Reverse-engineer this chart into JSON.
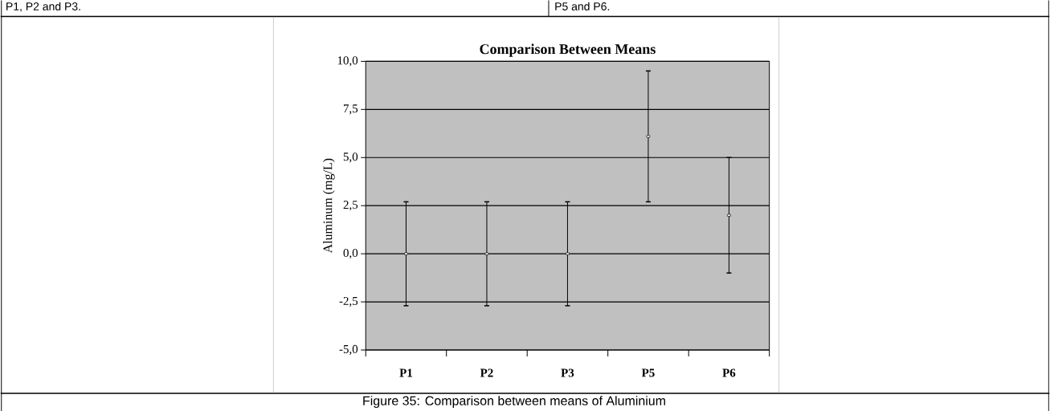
{
  "chart_data": {
    "type": "scatter",
    "title": "Comparison Between Means",
    "ylabel": "Aluminum (mg/L)",
    "categories": [
      "P1",
      "P2",
      "P3",
      "P5",
      "P6"
    ],
    "series": [
      {
        "color": "#000000",
        "values": [
          0,
          0,
          0,
          6.1,
          2.0
        ],
        "errors": [
          2.7,
          2.7,
          2.7,
          3.4,
          3.0
        ]
      }
    ],
    "ylim": [
      -5,
      10
    ],
    "yticks": [
      {
        "value": -5,
        "label": "-5,0"
      },
      {
        "value": -2.5,
        "label": "-2,5"
      },
      {
        "value": 0,
        "label": "0,0"
      },
      {
        "value": 2.5,
        "label": "2,5"
      },
      {
        "value": 5,
        "label": "5,0"
      },
      {
        "value": 7.5,
        "label": "7,5"
      },
      {
        "value": 10,
        "label": "10,0"
      }
    ],
    "grid": "y",
    "marker": "square",
    "annotations": [
      "P1, P2 and P3.",
      "P5 and P6.",
      "Figure 35: Comparison between means of Aluminium"
    ]
  }
}
